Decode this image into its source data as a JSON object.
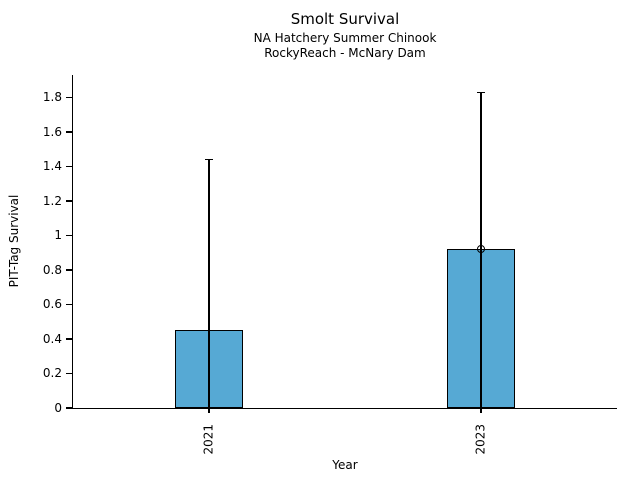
{
  "chart_data": {
    "type": "bar",
    "title": "Smolt Survival",
    "subtitle1": "NA Hatchery Summer Chinook",
    "subtitle2": "RockyReach - McNary Dam",
    "xlabel": "Year",
    "ylabel": "PIT-Tag Survival",
    "categories": [
      "2021",
      "2023"
    ],
    "values": [
      0.45,
      0.92
    ],
    "error_upper": [
      1.44,
      1.83
    ],
    "error_lower": [
      0,
      0
    ],
    "point_marker_values": [
      null,
      0.92
    ],
    "yticks": [
      0,
      0.2,
      0.4,
      0.6,
      0.8,
      1,
      1.2,
      1.4,
      1.6,
      1.8
    ],
    "ytick_labels": [
      "0",
      "0.2",
      "0.4",
      "0.6",
      "0.8",
      "1",
      "1.2",
      "1.4",
      "1.6",
      "1.8"
    ],
    "ylim": [
      0,
      1.93
    ],
    "grid": false,
    "legend": null,
    "bar_color": "#56a9d4",
    "bar_edge_color": "#000000",
    "axis_color": "#000000",
    "text_color": "#000000",
    "background_color": "#ffffff"
  }
}
